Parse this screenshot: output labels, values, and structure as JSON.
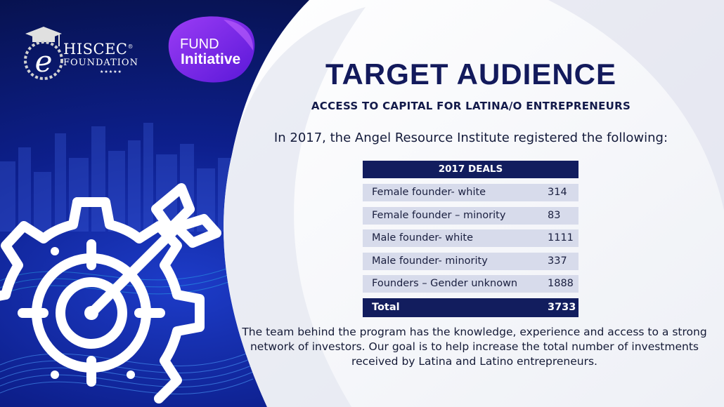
{
  "logos": {
    "hiscec_name": "HISCEC",
    "hiscec_sub": "FOUNDATION",
    "hiscec_mark": "®",
    "hiscec_stars": "★★★★★",
    "fund_line1": "FUND",
    "fund_line2": "Initiative"
  },
  "slide": {
    "title": "TARGET AUDIENCE",
    "subtitle": "ACCESS TO CAPITAL FOR LATINA/O ENTREPRENEURS",
    "intro": "In 2017, the Angel Resource Institute registered the following:",
    "footer": "The team behind the program has the knowledge, experience and access to a strong network of investors. Our goal is to help increase the total number of investments received by Latina and Latino entrepreneurs."
  },
  "table": {
    "header": "2017 DEALS",
    "rows": [
      {
        "label": "Female founder- white",
        "value": "314"
      },
      {
        "label": "Female founder – minority",
        "value": "83"
      },
      {
        "label": "Male founder- white",
        "value": "1111"
      },
      {
        "label": "Male founder- minority",
        "value": "337"
      },
      {
        "label": "Founders – Gender unknown",
        "value": "1888"
      }
    ],
    "total_label": "Total",
    "total_value": "3733"
  },
  "colors": {
    "navy": "#121d5e",
    "row_bg": "#d7dbeb",
    "fund_purple": "#7b2cf0",
    "bg_blue": "#0d1f8c"
  },
  "icons": [
    "target-gear-icon",
    "laurel-graduation-cap-logo"
  ]
}
